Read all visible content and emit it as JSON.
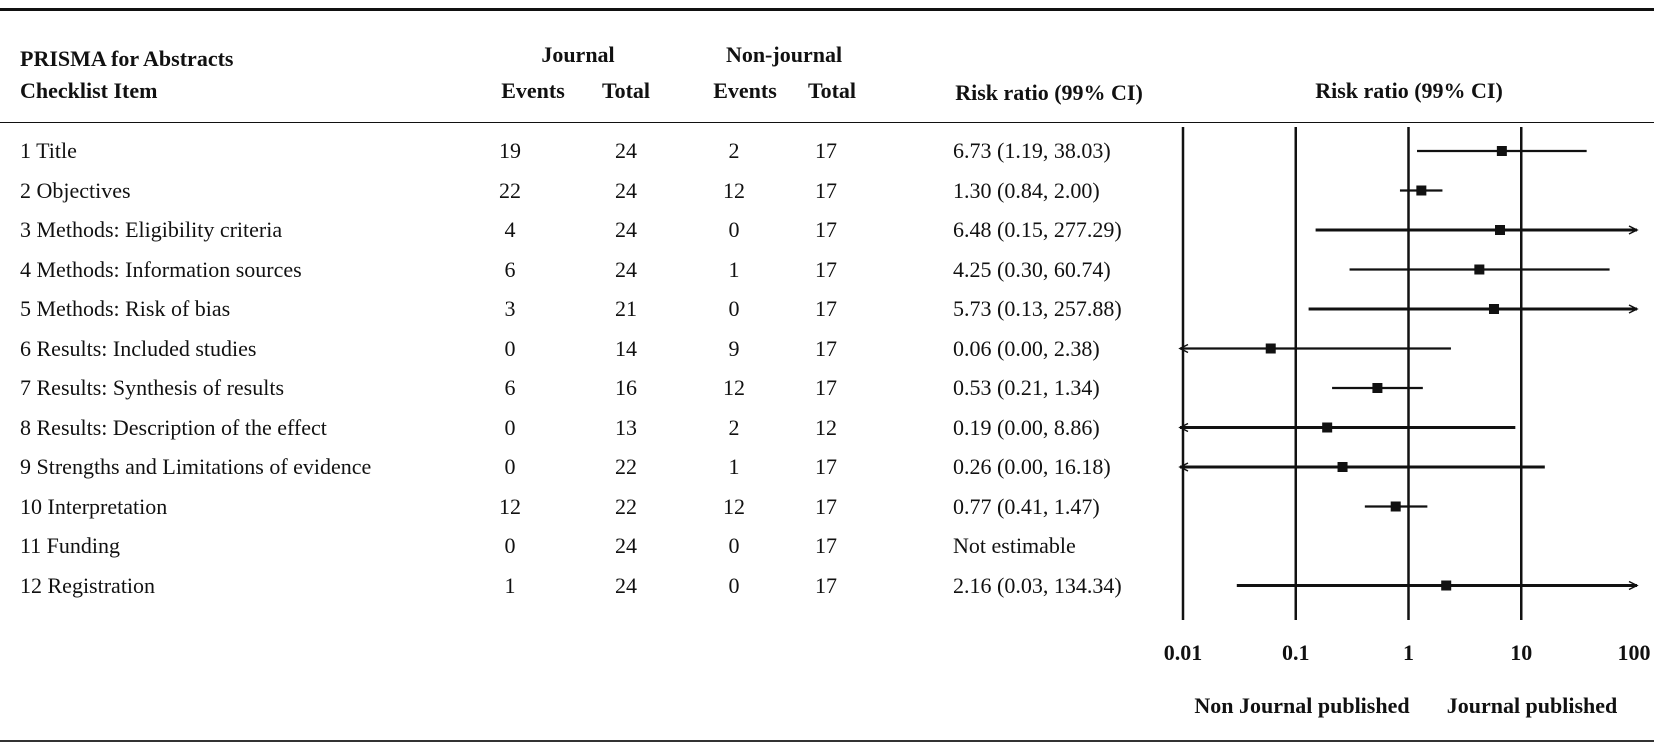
{
  "header": {
    "item_line1": "PRISMA for Abstracts",
    "item_line2": "Checklist Item",
    "journal": "Journal",
    "nonjournal": "Non-journal",
    "events": "Events",
    "total": "Total",
    "rr_column": "Risk ratio (99% CI)",
    "plot_title": "Risk ratio (99% CI)"
  },
  "rows": [
    {
      "item": "1 Title",
      "j_events": "19",
      "j_total": "24",
      "n_events": "2",
      "n_total": "17",
      "rr_text": "6.73 (1.19, 38.03)"
    },
    {
      "item": "2 Objectives",
      "j_events": "22",
      "j_total": "24",
      "n_events": "12",
      "n_total": "17",
      "rr_text": "1.30 (0.84, 2.00)"
    },
    {
      "item": "3 Methods: Eligibility  criteria",
      "j_events": "4",
      "j_total": "24",
      "n_events": "0",
      "n_total": "17",
      "rr_text": "6.48 (0.15, 277.29)"
    },
    {
      "item": "4 Methods: Information sources",
      "j_events": "6",
      "j_total": "24",
      "n_events": "1",
      "n_total": "17",
      "rr_text": "4.25 (0.30, 60.74)"
    },
    {
      "item": "5 Methods: Risk of bias",
      "j_events": "3",
      "j_total": "21",
      "n_events": "0",
      "n_total": "17",
      "rr_text": "5.73 (0.13, 257.88)"
    },
    {
      "item": "6 Results: Included studies",
      "j_events": "0",
      "j_total": "14",
      "n_events": "9",
      "n_total": "17",
      "rr_text": "0.06 (0.00, 2.38)"
    },
    {
      "item": "7 Results: Synthesis of results",
      "j_events": "6",
      "j_total": "16",
      "n_events": "12",
      "n_total": "17",
      "rr_text": "0.53 (0.21, 1.34)"
    },
    {
      "item": "8 Results: Description of the effect",
      "j_events": "0",
      "j_total": "13",
      "n_events": "2",
      "n_total": "12",
      "rr_text": "0.19 (0.00, 8.86)"
    },
    {
      "item": "9 Strengths and Limitations of evidence",
      "j_events": "0",
      "j_total": "22",
      "n_events": "1",
      "n_total": "17",
      "rr_text": "0.26 (0.00, 16.18)"
    },
    {
      "item": "10 Interpretation",
      "j_events": "12",
      "j_total": "22",
      "n_events": "12",
      "n_total": "17",
      "rr_text": "0.77 (0.41, 1.47)"
    },
    {
      "item": "11 Funding",
      "j_events": "0",
      "j_total": "24",
      "n_events": "0",
      "n_total": "17",
      "rr_text": "Not estimable"
    },
    {
      "item": "12 Registration",
      "j_events": "1",
      "j_total": "24",
      "n_events": "0",
      "n_total": "17",
      "rr_text": "2.16 (0.03, 134.34)"
    }
  ],
  "chart_data": {
    "type": "forest",
    "title": "Risk ratio (99% CI)",
    "x_scale": "log",
    "xlim": [
      0.01,
      100
    ],
    "x_ticks": [
      0.01,
      0.1,
      1,
      10,
      100
    ],
    "x_tick_labels": [
      "0.01",
      "0.1",
      "1",
      "10",
      "100"
    ],
    "left_label": "Non Journal published",
    "right_label": "Journal published",
    "vertical_lines_at": [
      0.01,
      0.1,
      1,
      10
    ],
    "points": [
      {
        "rr": 6.73,
        "lo": 1.19,
        "hi": 38.03
      },
      {
        "rr": 1.3,
        "lo": 0.84,
        "hi": 2.0
      },
      {
        "rr": 6.48,
        "lo": 0.15,
        "hi": 277.29
      },
      {
        "rr": 4.25,
        "lo": 0.3,
        "hi": 60.74
      },
      {
        "rr": 5.73,
        "lo": 0.13,
        "hi": 257.88
      },
      {
        "rr": 0.06,
        "lo": 0.0,
        "hi": 2.38
      },
      {
        "rr": 0.53,
        "lo": 0.21,
        "hi": 1.34
      },
      {
        "rr": 0.19,
        "lo": 0.0,
        "hi": 8.86
      },
      {
        "rr": 0.26,
        "lo": 0.0,
        "hi": 16.18
      },
      {
        "rr": 0.77,
        "lo": 0.41,
        "hi": 1.47
      },
      null,
      {
        "rr": 2.16,
        "lo": 0.03,
        "hi": 134.34
      }
    ]
  }
}
